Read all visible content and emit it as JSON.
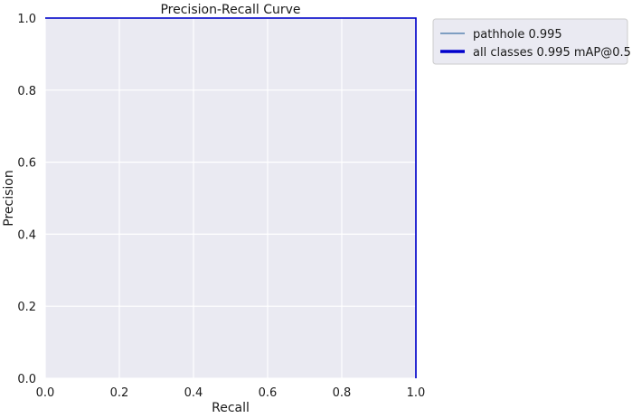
{
  "chart_data": {
    "type": "line",
    "title": "Precision-Recall Curve",
    "xlabel": "Recall",
    "ylabel": "Precision",
    "xlim": [
      0.0,
      1.0
    ],
    "ylim": [
      0.0,
      1.0
    ],
    "x_ticks": [
      "0.0",
      "0.2",
      "0.4",
      "0.6",
      "0.8",
      "1.0"
    ],
    "y_ticks": [
      "0.0",
      "0.2",
      "0.4",
      "0.6",
      "0.8",
      "1.0"
    ],
    "grid": true,
    "legend_position": "outside-right",
    "background_color": "#eaeaf2",
    "series": [
      {
        "name": "pathhole 0.995",
        "color": "#5b84b1",
        "style": "thin",
        "x": [
          0.0,
          1.0,
          1.0
        ],
        "y": [
          1.0,
          1.0,
          0.0
        ]
      },
      {
        "name": "all classes 0.995 mAP@0.5",
        "color": "#0000cc",
        "style": "thick",
        "x": [
          0.0,
          1.0,
          1.0
        ],
        "y": [
          1.0,
          1.0,
          0.0
        ]
      }
    ]
  }
}
